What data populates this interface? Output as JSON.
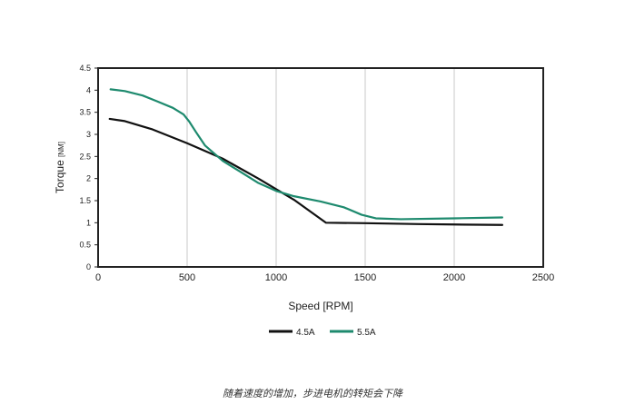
{
  "caption": "随着速度的增加，步进电机的转矩会下降",
  "chart_data": {
    "type": "line",
    "xlabel": "Speed [RPM]",
    "ylabel_main": "Torque",
    "ylabel_unit": "[NM]",
    "xlim": [
      0,
      2500
    ],
    "ylim": [
      0,
      4.5
    ],
    "x_ticks": [
      "0",
      "500",
      "1000",
      "1500",
      "2000",
      "2500"
    ],
    "x_tick_values": [
      0,
      500,
      1000,
      1500,
      2000,
      2500
    ],
    "y_ticks": [
      "0",
      "0.5",
      "1",
      "1.5",
      "2",
      "2.5",
      "3",
      "3.5",
      "4",
      "4.5"
    ],
    "y_tick_values": [
      0,
      0.5,
      1,
      1.5,
      2,
      2.5,
      3,
      3.5,
      4,
      4.5
    ],
    "grid": "vertical",
    "legend_position": "bottom-center",
    "series": [
      {
        "name": "4.5A",
        "color": "#111111",
        "x": [
          65,
          150,
          300,
          500,
          700,
          900,
          1100,
          1280,
          1500,
          1800,
          2000,
          2270
        ],
        "y": [
          3.35,
          3.3,
          3.12,
          2.8,
          2.45,
          2.0,
          1.52,
          1.0,
          0.99,
          0.97,
          0.96,
          0.95
        ]
      },
      {
        "name": "5.5A",
        "color": "#1e8a6e",
        "x": [
          70,
          150,
          250,
          330,
          420,
          480,
          510,
          550,
          600,
          700,
          800,
          900,
          1000,
          1100,
          1250,
          1380,
          1480,
          1560,
          1700,
          2000,
          2270
        ],
        "y": [
          4.02,
          3.98,
          3.88,
          3.75,
          3.6,
          3.45,
          3.3,
          3.05,
          2.75,
          2.4,
          2.15,
          1.9,
          1.72,
          1.6,
          1.48,
          1.35,
          1.18,
          1.1,
          1.08,
          1.1,
          1.12
        ]
      }
    ]
  }
}
